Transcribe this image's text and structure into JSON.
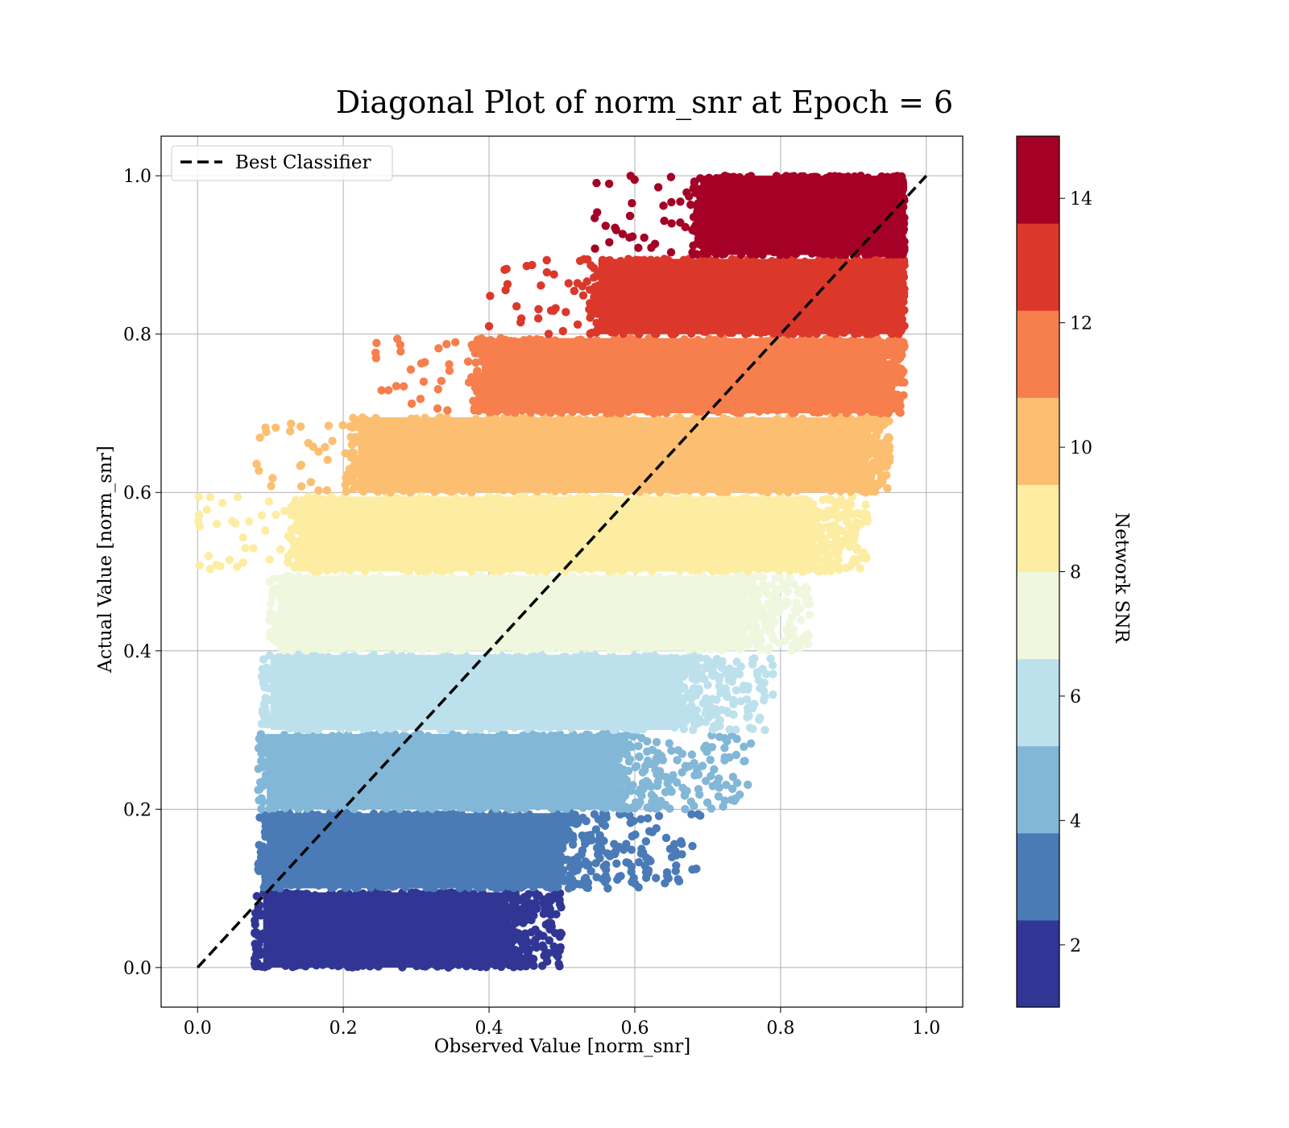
{
  "chart_data": {
    "type": "scatter",
    "title": "Diagonal Plot of norm_snr at Epoch = 6",
    "xlabel": "Observed Value [norm_snr]",
    "ylabel": "Actual Value [norm_snr]",
    "xlim": [
      -0.05,
      1.05
    ],
    "ylim": [
      -0.05,
      1.05
    ],
    "x_ticks": [
      "0.0",
      "0.2",
      "0.4",
      "0.6",
      "0.8",
      "1.0"
    ],
    "y_ticks": [
      "0.0",
      "0.2",
      "0.4",
      "0.6",
      "0.8",
      "1.0"
    ],
    "grid": true,
    "legend": {
      "location": "upper-left",
      "entries": [
        "Best Classifier"
      ]
    },
    "reference_line": {
      "name": "Best Classifier",
      "style": "dashed",
      "color": "#000000",
      "x": [
        0.0,
        1.0
      ],
      "y": [
        0.0,
        1.0
      ]
    },
    "colorbar": {
      "label": "Network SNR",
      "range": [
        1,
        15
      ],
      "ticks": [
        "2",
        "4",
        "6",
        "8",
        "10",
        "12",
        "14"
      ],
      "colors": [
        "#313695",
        "#4a7bb7",
        "#82b7d7",
        "#bde1ec",
        "#eff8df",
        "#fdeda3",
        "#fcbf72",
        "#f67f4d",
        "#db382b",
        "#a50026"
      ]
    },
    "bands": [
      {
        "snr": 1.7,
        "color": "#313695",
        "y": [
          0.0,
          0.095
        ],
        "x_dense": [
          0.09,
          0.42
        ],
        "x_sparse_max": 0.5
      },
      {
        "snr": 3.1,
        "color": "#4a7bb7",
        "y": [
          0.1,
          0.195
        ],
        "x_dense": [
          0.095,
          0.49
        ],
        "x_sparse_max": 0.69
      },
      {
        "snr": 4.5,
        "color": "#82b7d7",
        "y": [
          0.2,
          0.295
        ],
        "x_dense": [
          0.095,
          0.57
        ],
        "x_sparse_max": 0.76
      },
      {
        "snr": 5.9,
        "color": "#bde1ec",
        "y": [
          0.3,
          0.395
        ],
        "x_dense": [
          0.1,
          0.65
        ],
        "x_sparse_max": 0.79
      },
      {
        "snr": 7.3,
        "color": "#eff8df",
        "y": [
          0.4,
          0.495
        ],
        "x_dense": [
          0.11,
          0.74
        ],
        "x_sparse_max": 0.84
      },
      {
        "snr": 8.7,
        "color": "#fdeda3",
        "y": [
          0.5,
          0.595
        ],
        "x_dense": [
          0.14,
          0.83
        ],
        "x_sparse_max": 0.92
      },
      {
        "snr": 10.1,
        "color": "#fcbf72",
        "y": [
          0.6,
          0.695
        ],
        "x_dense": [
          0.22,
          0.91
        ],
        "x_sparse_max": 0.95
      },
      {
        "snr": 11.5,
        "color": "#f67f4d",
        "y": [
          0.7,
          0.795
        ],
        "x_dense": [
          0.39,
          0.93
        ],
        "x_sparse_max": 0.97
      },
      {
        "snr": 12.9,
        "color": "#db382b",
        "y": [
          0.8,
          0.895
        ],
        "x_dense": [
          0.55,
          0.95
        ],
        "x_sparse_max": 0.97
      },
      {
        "snr": 14.3,
        "color": "#a50026",
        "y": [
          0.9,
          1.0
        ],
        "x_dense": [
          0.69,
          0.96
        ],
        "x_sparse_max": 0.97
      }
    ]
  }
}
